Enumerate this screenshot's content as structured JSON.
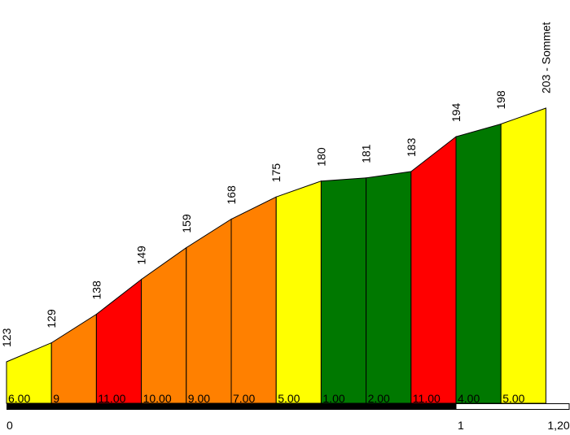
{
  "chart_data": {
    "type": "area",
    "title": "",
    "xlabel": "",
    "ylabel": "",
    "x": [
      0,
      0.1,
      0.2,
      0.3,
      0.4,
      0.5,
      0.6,
      0.7,
      0.8,
      0.9,
      1.0,
      1.1,
      1.2
    ],
    "altitudes": [
      123,
      129,
      138,
      149,
      159,
      168,
      175,
      180,
      181,
      183,
      194,
      198,
      203
    ],
    "altitude_labels": [
      "123",
      "129",
      "138",
      "149",
      "159",
      "168",
      "175",
      "180",
      "181",
      "183",
      "194",
      "198",
      "203 - Sommet"
    ],
    "gradients": [
      "6.00",
      "9",
      "11.00",
      "10.00",
      "9.00",
      "7.00",
      "5.00",
      "1.00",
      "2.00",
      "11.00",
      "4.00",
      "5.00"
    ],
    "segment_colors": [
      "#ffff00",
      "#ff8000",
      "#ff0000",
      "#ff8000",
      "#ff8000",
      "#ff8000",
      "#ffff00",
      "#007800",
      "#007800",
      "#ff0000",
      "#007800",
      "#ffff00"
    ],
    "xticks": [
      "0",
      "1",
      "1,20"
    ],
    "xtick_values": [
      0,
      1.0,
      1.2
    ],
    "xlim": [
      0,
      1.2
    ],
    "ylim": [
      123,
      203
    ],
    "grid": false,
    "legend": "none"
  }
}
